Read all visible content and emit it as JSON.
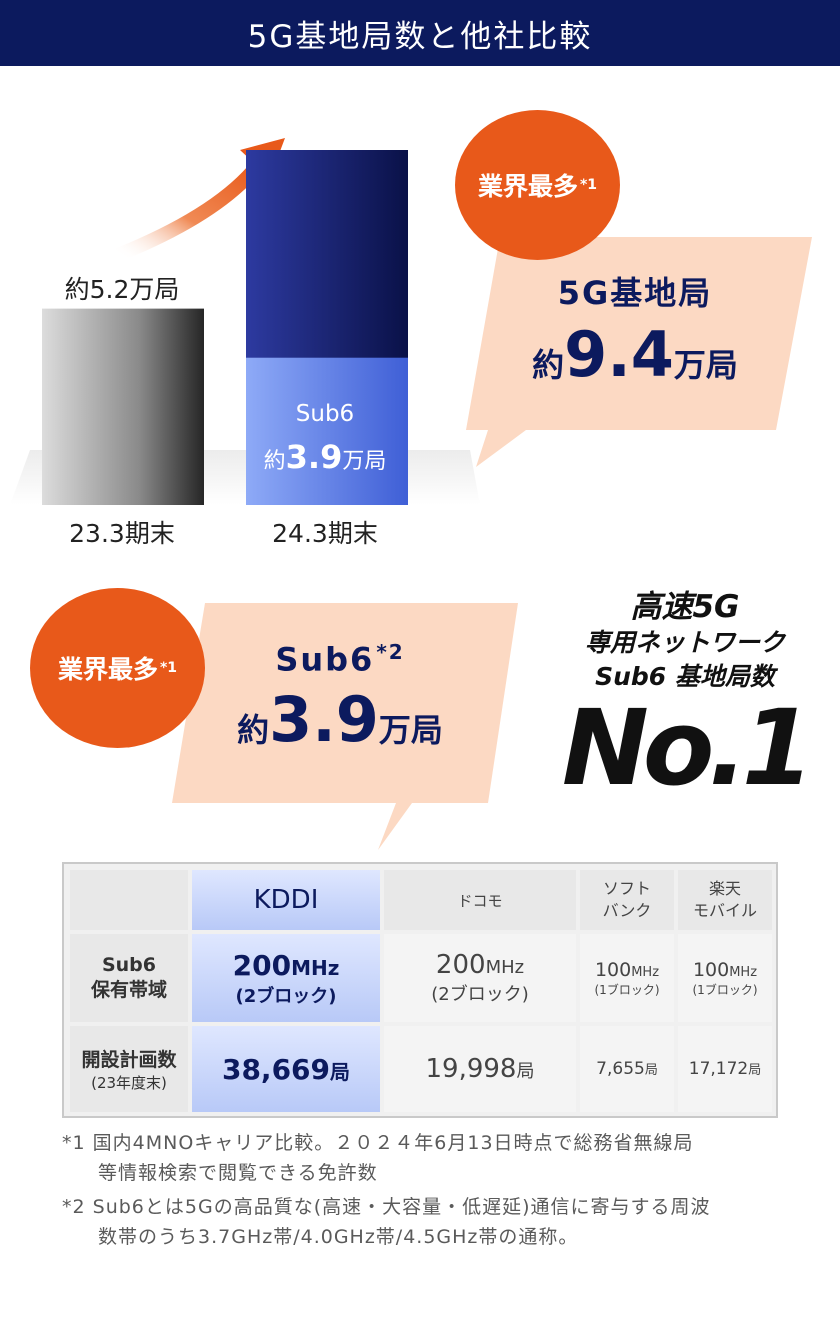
{
  "header": {
    "title": "5G基地局数と他社比較"
  },
  "chart_data": {
    "type": "bar",
    "categories": [
      "23.3期末",
      "24.3期末"
    ],
    "series": [
      {
        "name": "Sub6",
        "values": [
          null,
          3.9
        ]
      },
      {
        "name": "5G基地局",
        "values": [
          5.2,
          9.4
        ]
      }
    ],
    "ylim": [
      0,
      10
    ],
    "unit": "万局",
    "data_labels": {
      "bar1": "約5.2万局",
      "sub6_name": "Sub6",
      "sub6_prefix": "約",
      "sub6_value": "3.9",
      "sub6_unit": "万局"
    },
    "colors": {
      "bar1_light": "#d8d8d8",
      "bar1_dark": "#2a2a2a",
      "bar2_top": "#0f1856",
      "bar2_sub6": "#6d8ef0",
      "arrow": "#e8591a"
    }
  },
  "callout_top": {
    "badge": "業界最多",
    "badge_sup": "*1",
    "title": "5G基地局",
    "prefix": "約",
    "value": "9.4",
    "unit": "万局"
  },
  "callout_mid": {
    "badge": "業界最多",
    "badge_sup": "*1",
    "title": "Sub6",
    "title_sup": "*2",
    "prefix": "約",
    "value": "3.9",
    "unit": "万局"
  },
  "no1": {
    "line1": "高速5G",
    "line2": "専用ネットワーク",
    "line3": "Sub6 基地局数",
    "big": "No.1"
  },
  "table": {
    "headers": [
      "KDDI",
      "ドコモ",
      "ソフト\nバンク",
      "楽天\nモバイル"
    ],
    "rows": [
      {
        "label": "Sub6\n保有帯域",
        "cells": [
          {
            "main": "200",
            "unit": "MHz",
            "sub": "(2ブロック)"
          },
          {
            "main": "200",
            "unit": "MHz",
            "sub": "(2ブロック)"
          },
          {
            "main": "100",
            "unit": "MHz",
            "sub": "(1ブロック)"
          },
          {
            "main": "100",
            "unit": "MHz",
            "sub": "(1ブロック)"
          }
        ]
      },
      {
        "label": "開設計画数",
        "label_sub": "(23年度末)",
        "cells": [
          {
            "main": "38,669",
            "unit": "局"
          },
          {
            "main": "19,998",
            "unit": "局"
          },
          {
            "main": "7,655",
            "unit": "局"
          },
          {
            "main": "17,172",
            "unit": "局"
          }
        ]
      }
    ]
  },
  "footnotes": [
    {
      "mark": "*1",
      "text": "国内4MNOキャリア比較。２０２４年6月13日時点で総務省無線局",
      "text2": "等情報検索で閲覧できる免許数"
    },
    {
      "mark": "*2",
      "text": "Sub6とは5Gの高品質な(高速・大容量・低遅延)通信に寄与する周波",
      "text2": "数帯のうち3.7GHz帯/4.0GHz帯/4.5GHz帯の通称。"
    }
  ]
}
